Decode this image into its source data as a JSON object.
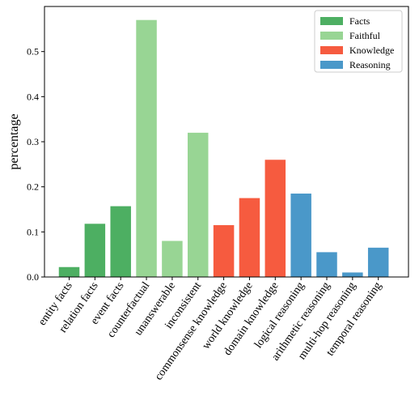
{
  "chart_data": {
    "type": "bar",
    "title": "",
    "xlabel": "",
    "ylabel": "percentage",
    "ylim": [
      0,
      0.6
    ],
    "yticks": [
      "0.0",
      "0.1",
      "0.2",
      "0.3",
      "0.4",
      "0.5"
    ],
    "grid": false,
    "legend_position": "top-right",
    "groups": [
      {
        "name": "Facts",
        "color": "#4daf62"
      },
      {
        "name": "Faithful",
        "color": "#98d594"
      },
      {
        "name": "Knowledge",
        "color": "#f65b3f"
      },
      {
        "name": "Reasoning",
        "color": "#4a98c9"
      }
    ],
    "categories": [
      "entity facts",
      "relation facts",
      "event facts",
      "counterfactual",
      "unanswerable",
      "inconsistent",
      "commonsense knowledge",
      "world knowledge",
      "domain knowledge",
      "logical reasoning",
      "arithmetic reasoning",
      "multi-hop reasoning",
      "temporal reasoning"
    ],
    "category_group": [
      0,
      0,
      0,
      1,
      1,
      1,
      2,
      2,
      2,
      3,
      3,
      3,
      3
    ],
    "values": [
      0.022,
      0.118,
      0.157,
      0.57,
      0.08,
      0.32,
      0.115,
      0.175,
      0.26,
      0.185,
      0.055,
      0.01,
      0.065
    ]
  }
}
